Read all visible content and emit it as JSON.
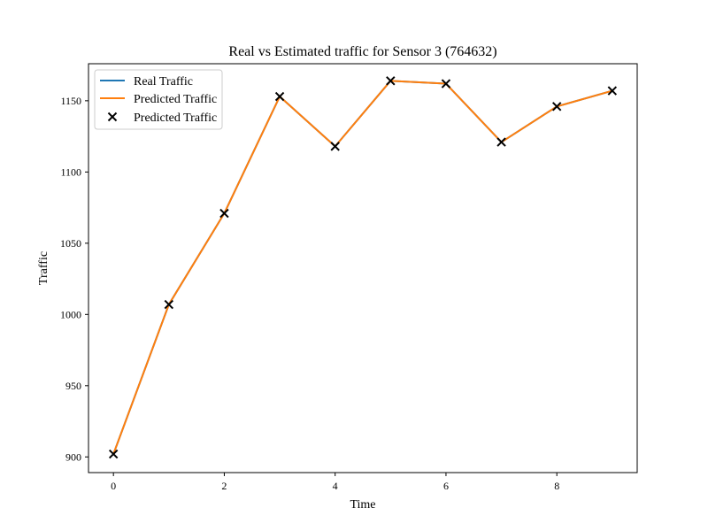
{
  "chart_data": {
    "type": "line",
    "title": "Real vs Estimated traffic for Sensor 3 (764632)",
    "xlabel": "Time",
    "ylabel": "Traffic",
    "xlim": [
      -0.45,
      9.45
    ],
    "ylim": [
      889,
      1176
    ],
    "x_ticks": [
      0,
      2,
      4,
      6,
      8
    ],
    "y_ticks": [
      900,
      950,
      1000,
      1050,
      1100,
      1150
    ],
    "grid": false,
    "legend_position": "top-left",
    "x": [
      0,
      1,
      2,
      3,
      4,
      5,
      6,
      7,
      8,
      9
    ],
    "series": [
      {
        "name": "Real Traffic",
        "kind": "line",
        "color": "#1f77b4",
        "values": [
          902,
          1007,
          1071,
          1153,
          1118,
          1164,
          1162,
          1121,
          1146,
          1157
        ]
      },
      {
        "name": "Predicted Traffic",
        "kind": "line",
        "color": "#ff7f0e",
        "values": [
          902,
          1007,
          1071,
          1153,
          1118,
          1164,
          1162,
          1121,
          1146,
          1157
        ]
      },
      {
        "name": "Predicted Traffic",
        "kind": "scatter",
        "marker": "x",
        "color": "#000000",
        "values": [
          902,
          1007,
          1071,
          1153,
          1118,
          1164,
          1162,
          1121,
          1146,
          1157
        ]
      }
    ]
  }
}
